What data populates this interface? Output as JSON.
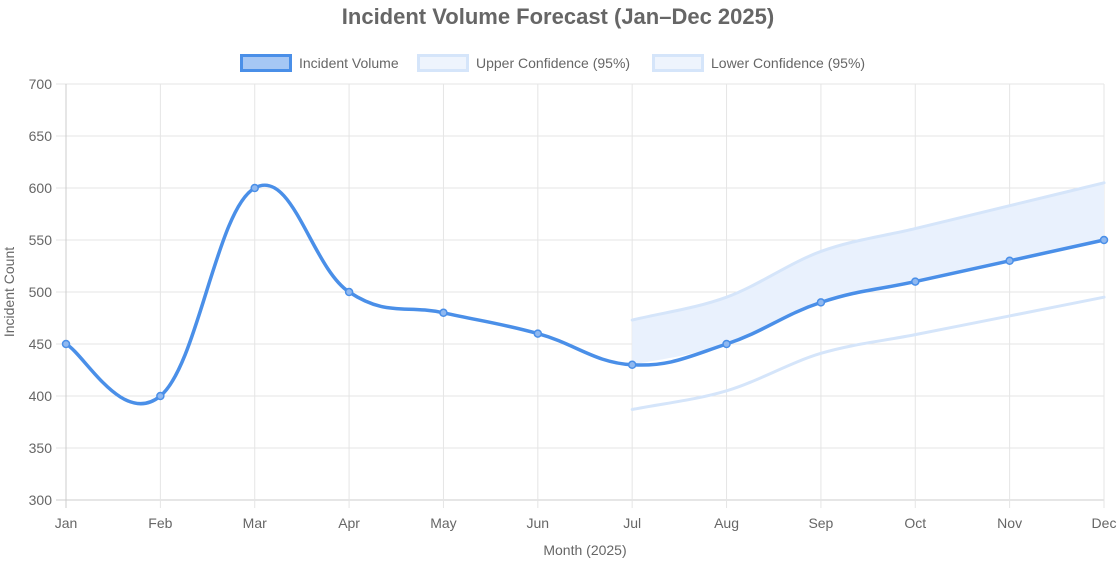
{
  "chart_data": {
    "type": "line",
    "title": "Incident Volume Forecast (Jan–Dec 2025)",
    "xlabel": "Month (2025)",
    "ylabel": "Incident Count",
    "categories": [
      "Jan",
      "Feb",
      "Mar",
      "Apr",
      "May",
      "Jun",
      "Jul",
      "Aug",
      "Sep",
      "Oct",
      "Nov",
      "Dec"
    ],
    "ylim": [
      300,
      700
    ],
    "yticks": [
      300,
      350,
      400,
      450,
      500,
      550,
      600,
      650,
      700
    ],
    "grid": true,
    "legend_position": "top",
    "series": [
      {
        "name": "Incident Volume",
        "color": "#4a8fe8",
        "values": [
          450,
          400,
          600,
          500,
          480,
          460,
          430,
          450,
          490,
          510,
          530,
          550
        ]
      },
      {
        "name": "Upper Confidence (95%)",
        "color": "#d5e5fa",
        "values": [
          null,
          null,
          null,
          null,
          null,
          null,
          473,
          495,
          539,
          561,
          583,
          605
        ]
      },
      {
        "name": "Lower Confidence (95%)",
        "color": "#d5e5fa",
        "values": [
          null,
          null,
          null,
          null,
          null,
          null,
          387,
          405,
          441,
          459,
          477,
          495
        ]
      }
    ],
    "band_fill": "#e9f1fd"
  }
}
